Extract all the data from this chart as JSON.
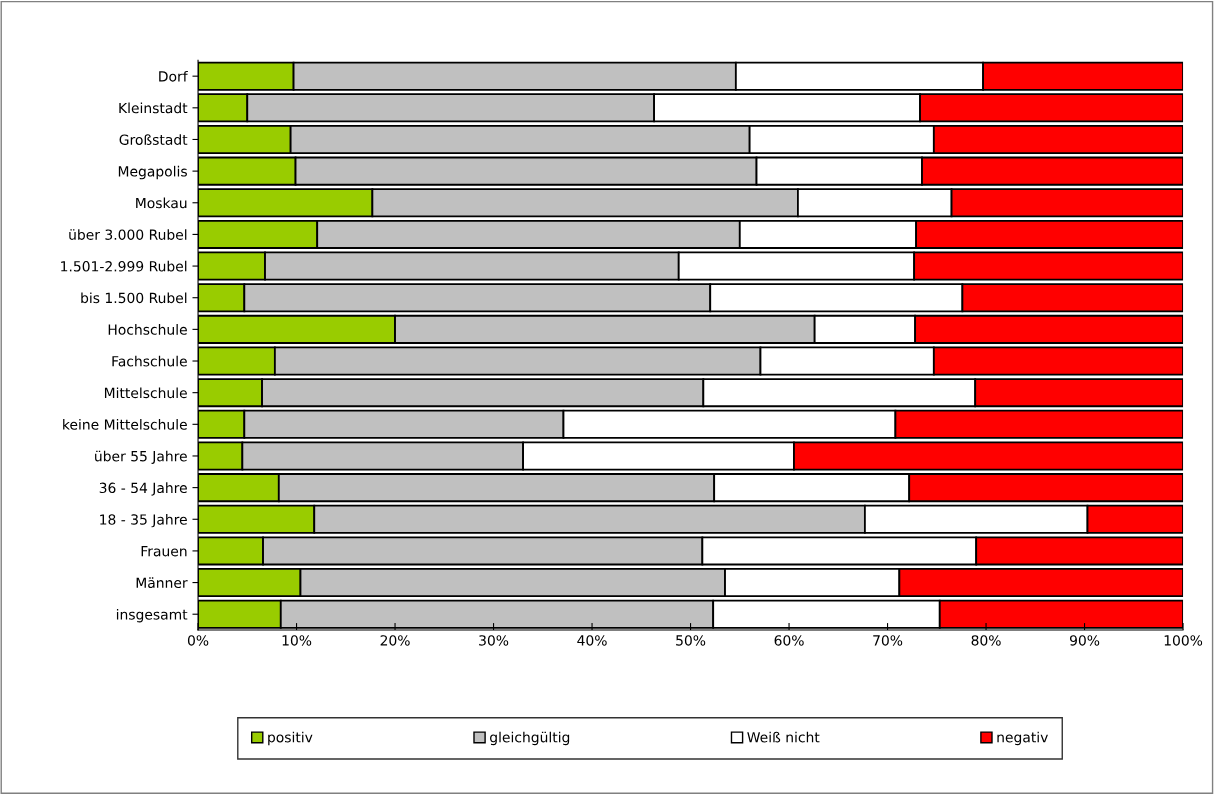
{
  "chart_data": {
    "type": "bar",
    "orientation": "horizontal",
    "stacked": true,
    "categories": [
      "Dorf",
      "Kleinstadt",
      "Großstadt",
      "Megapolis",
      "Moskau",
      "über 3.000 Rubel",
      "1.501-2.999 Rubel",
      "bis 1.500 Rubel",
      "Hochschule",
      "Fachschule",
      "Mittelschule",
      "keine Mittelschule",
      "über 55 Jahre",
      "36 - 54 Jahre",
      "18 - 35 Jahre",
      "Frauen",
      "Männer",
      "insgesamt"
    ],
    "series": [
      {
        "name": "positiv",
        "color": "#99cc00",
        "values": [
          9.7,
          5.0,
          9.4,
          9.9,
          17.7,
          12.1,
          6.8,
          4.7,
          20.0,
          7.8,
          6.5,
          4.7,
          4.5,
          8.2,
          11.8,
          6.6,
          10.4,
          8.4
        ]
      },
      {
        "name": "gleichgültig",
        "color": "#c0c0c0",
        "values": [
          44.9,
          41.3,
          46.6,
          46.8,
          43.2,
          42.9,
          42.0,
          47.3,
          42.6,
          49.3,
          44.8,
          32.4,
          28.5,
          44.2,
          55.9,
          44.6,
          43.1,
          43.9
        ]
      },
      {
        "name": "Weiß nicht",
        "color": "#ffffff",
        "values": [
          25.1,
          27.0,
          18.7,
          16.8,
          15.6,
          17.9,
          23.9,
          25.6,
          10.2,
          17.6,
          27.6,
          33.7,
          27.5,
          19.8,
          22.6,
          27.8,
          17.7,
          23.0
        ]
      },
      {
        "name": "negativ",
        "color": "#ff0000",
        "values": [
          20.3,
          26.7,
          25.3,
          26.5,
          23.5,
          27.1,
          27.3,
          22.4,
          27.2,
          25.3,
          21.1,
          29.2,
          39.5,
          27.8,
          9.7,
          21.0,
          28.8,
          24.7
        ]
      }
    ],
    "xlim": [
      0,
      100
    ],
    "xticks": [
      {
        "value": 0,
        "label": "0%"
      },
      {
        "value": 10,
        "label": "10%"
      },
      {
        "value": 20,
        "label": "20%"
      },
      {
        "value": 30,
        "label": "30%"
      },
      {
        "value": 40,
        "label": "40%"
      },
      {
        "value": 50,
        "label": "50%"
      },
      {
        "value": 60,
        "label": "60%"
      },
      {
        "value": 70,
        "label": "70%"
      },
      {
        "value": 80,
        "label": "80%"
      },
      {
        "value": 90,
        "label": "90%"
      },
      {
        "value": 100,
        "label": "100%"
      }
    ],
    "grid": false,
    "legend": "bottom"
  }
}
